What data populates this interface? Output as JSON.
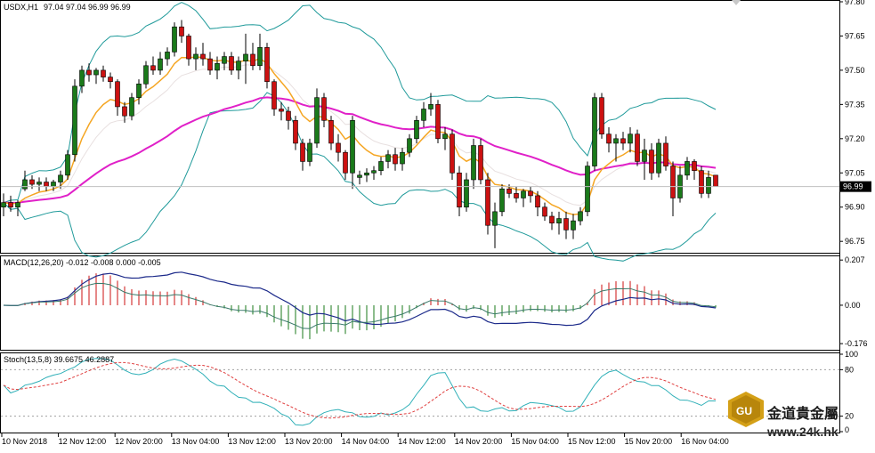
{
  "header": {
    "symbol": "USDX,H1",
    "ohlc": "97.04 97.04 96.99 96.99"
  },
  "price_panel": {
    "ticks": [
      "97.80",
      "97.65",
      "97.50",
      "97.35",
      "97.20",
      "97.05",
      "96.90",
      "96.75"
    ],
    "current_price": "96.99"
  },
  "macd_panel": {
    "label": "MACD(12,26,20) -0.012 -0.008 0.000 -0.005",
    "ticks": [
      "0.207",
      "0.00",
      "-0.176"
    ]
  },
  "stoch_panel": {
    "label": "Stoch(13,5,8) 39.6675 46.2887",
    "ticks": [
      "100",
      "80",
      "20",
      "0"
    ]
  },
  "time_axis": [
    "10 Nov 2018",
    "12 Nov 12:00",
    "12 Nov 20:00",
    "13 Nov 04:00",
    "13 Nov 12:00",
    "13 Nov 20:00",
    "14 Nov 04:00",
    "14 Nov 12:00",
    "14 Nov 20:00",
    "15 Nov 04:00",
    "15 Nov 12:00",
    "15 Nov 20:00",
    "16 Nov 04:00"
  ],
  "watermark": {
    "logo_text": "GU",
    "name": "金道貴金屬",
    "url": "www.24k.hk"
  },
  "colors": {
    "bull": "#1a7a1a",
    "bear": "#cc1111",
    "ma_fast": "#f5a623",
    "ma_slow": "#e020c8",
    "bands": "#1f9a9a",
    "macd_signal": "#1c2a8a",
    "macd_line": "#3a7a6a",
    "stoch_main": "#30b0b8",
    "stoch_signal": "#e04040"
  },
  "chart_data": {
    "type": "candlestick",
    "symbol": "USDX",
    "timeframe": "H1",
    "candles": [
      {
        "o": 96.9,
        "h": 96.96,
        "l": 96.86,
        "c": 96.92
      },
      {
        "o": 96.92,
        "h": 96.95,
        "l": 96.88,
        "c": 96.9
      },
      {
        "o": 96.9,
        "h": 96.93,
        "l": 96.86,
        "c": 96.92
      },
      {
        "o": 96.98,
        "h": 97.06,
        "l": 96.97,
        "c": 97.02
      },
      {
        "o": 97.02,
        "h": 97.04,
        "l": 96.98,
        "c": 97.0
      },
      {
        "o": 97.0,
        "h": 97.03,
        "l": 96.97,
        "c": 97.01
      },
      {
        "o": 97.01,
        "h": 97.03,
        "l": 96.97,
        "c": 96.99
      },
      {
        "o": 96.99,
        "h": 97.02,
        "l": 96.97,
        "c": 97.01
      },
      {
        "o": 97.01,
        "h": 97.06,
        "l": 96.98,
        "c": 97.04
      },
      {
        "o": 97.04,
        "h": 97.15,
        "l": 97.02,
        "c": 97.13
      },
      {
        "o": 97.13,
        "h": 97.46,
        "l": 97.1,
        "c": 97.43
      },
      {
        "o": 97.43,
        "h": 97.52,
        "l": 97.4,
        "c": 97.5
      },
      {
        "o": 97.5,
        "h": 97.53,
        "l": 97.45,
        "c": 97.48
      },
      {
        "o": 97.48,
        "h": 97.51,
        "l": 97.44,
        "c": 97.5
      },
      {
        "o": 97.5,
        "h": 97.52,
        "l": 97.45,
        "c": 97.47
      },
      {
        "o": 97.47,
        "h": 97.49,
        "l": 97.42,
        "c": 97.45
      },
      {
        "o": 97.45,
        "h": 97.46,
        "l": 97.3,
        "c": 97.34
      },
      {
        "o": 97.34,
        "h": 97.36,
        "l": 97.27,
        "c": 97.3
      },
      {
        "o": 97.3,
        "h": 97.4,
        "l": 97.28,
        "c": 97.38
      },
      {
        "o": 97.38,
        "h": 97.46,
        "l": 97.35,
        "c": 97.44
      },
      {
        "o": 97.44,
        "h": 97.54,
        "l": 97.42,
        "c": 97.52
      },
      {
        "o": 97.52,
        "h": 97.56,
        "l": 97.48,
        "c": 97.5
      },
      {
        "o": 97.5,
        "h": 97.58,
        "l": 97.48,
        "c": 97.55
      },
      {
        "o": 97.55,
        "h": 97.6,
        "l": 97.52,
        "c": 97.58
      },
      {
        "o": 97.58,
        "h": 97.71,
        "l": 97.56,
        "c": 97.69
      },
      {
        "o": 97.69,
        "h": 97.72,
        "l": 97.62,
        "c": 97.65
      },
      {
        "o": 97.65,
        "h": 97.66,
        "l": 97.52,
        "c": 97.55
      },
      {
        "o": 97.55,
        "h": 97.6,
        "l": 97.5,
        "c": 97.57
      },
      {
        "o": 97.57,
        "h": 97.62,
        "l": 97.52,
        "c": 97.55
      },
      {
        "o": 97.55,
        "h": 97.58,
        "l": 97.48,
        "c": 97.5
      },
      {
        "o": 97.5,
        "h": 97.56,
        "l": 97.46,
        "c": 97.53
      },
      {
        "o": 97.53,
        "h": 97.58,
        "l": 97.5,
        "c": 97.56
      },
      {
        "o": 97.56,
        "h": 97.58,
        "l": 97.48,
        "c": 97.5
      },
      {
        "o": 97.5,
        "h": 97.56,
        "l": 97.46,
        "c": 97.54
      },
      {
        "o": 97.54,
        "h": 97.66,
        "l": 97.44,
        "c": 97.57
      },
      {
        "o": 97.57,
        "h": 97.62,
        "l": 97.5,
        "c": 97.52
      },
      {
        "o": 97.52,
        "h": 97.66,
        "l": 97.5,
        "c": 97.6
      },
      {
        "o": 97.6,
        "h": 97.62,
        "l": 97.42,
        "c": 97.45
      },
      {
        "o": 97.45,
        "h": 97.46,
        "l": 97.3,
        "c": 97.33
      },
      {
        "o": 97.33,
        "h": 97.36,
        "l": 97.28,
        "c": 97.32
      },
      {
        "o": 97.32,
        "h": 97.34,
        "l": 97.24,
        "c": 97.28
      },
      {
        "o": 97.28,
        "h": 97.3,
        "l": 97.15,
        "c": 97.18
      },
      {
        "o": 97.18,
        "h": 97.2,
        "l": 97.06,
        "c": 97.1
      },
      {
        "o": 97.1,
        "h": 97.2,
        "l": 97.08,
        "c": 97.18
      },
      {
        "o": 97.18,
        "h": 97.42,
        "l": 97.16,
        "c": 97.38
      },
      {
        "o": 97.38,
        "h": 97.4,
        "l": 97.25,
        "c": 97.28
      },
      {
        "o": 97.28,
        "h": 97.3,
        "l": 97.15,
        "c": 97.18
      },
      {
        "o": 97.18,
        "h": 97.22,
        "l": 97.1,
        "c": 97.14
      },
      {
        "o": 97.14,
        "h": 97.15,
        "l": 97.02,
        "c": 97.05
      },
      {
        "o": 97.05,
        "h": 97.3,
        "l": 96.98,
        "c": 97.28
      },
      {
        "o": 97.03,
        "h": 97.06,
        "l": 97.0,
        "c": 97.04
      },
      {
        "o": 97.04,
        "h": 97.07,
        "l": 97.01,
        "c": 97.05
      },
      {
        "o": 97.05,
        "h": 97.08,
        "l": 97.02,
        "c": 97.06
      },
      {
        "o": 97.06,
        "h": 97.12,
        "l": 97.04,
        "c": 97.1
      },
      {
        "o": 97.1,
        "h": 97.15,
        "l": 97.07,
        "c": 97.13
      },
      {
        "o": 97.13,
        "h": 97.16,
        "l": 97.06,
        "c": 97.09
      },
      {
        "o": 97.09,
        "h": 97.16,
        "l": 97.06,
        "c": 97.14
      },
      {
        "o": 97.14,
        "h": 97.22,
        "l": 97.12,
        "c": 97.2
      },
      {
        "o": 97.2,
        "h": 97.3,
        "l": 97.18,
        "c": 97.28
      },
      {
        "o": 97.28,
        "h": 97.36,
        "l": 97.25,
        "c": 97.33
      },
      {
        "o": 97.33,
        "h": 97.4,
        "l": 97.3,
        "c": 97.35
      },
      {
        "o": 97.35,
        "h": 97.37,
        "l": 97.18,
        "c": 97.2
      },
      {
        "o": 97.2,
        "h": 97.25,
        "l": 97.15,
        "c": 97.22
      },
      {
        "o": 97.22,
        "h": 97.24,
        "l": 97.02,
        "c": 97.05
      },
      {
        "o": 97.05,
        "h": 97.08,
        "l": 96.86,
        "c": 96.9
      },
      {
        "o": 96.9,
        "h": 97.05,
        "l": 96.88,
        "c": 97.02
      },
      {
        "o": 97.02,
        "h": 97.2,
        "l": 96.98,
        "c": 97.17
      },
      {
        "o": 97.17,
        "h": 97.2,
        "l": 97.0,
        "c": 97.02
      },
      {
        "o": 97.02,
        "h": 97.05,
        "l": 96.78,
        "c": 96.82
      },
      {
        "o": 96.82,
        "h": 96.92,
        "l": 96.72,
        "c": 96.88
      },
      {
        "o": 96.88,
        "h": 97.0,
        "l": 96.86,
        "c": 96.98
      },
      {
        "o": 96.98,
        "h": 97.0,
        "l": 96.94,
        "c": 96.96
      },
      {
        "o": 96.96,
        "h": 96.99,
        "l": 96.92,
        "c": 96.94
      },
      {
        "o": 96.94,
        "h": 96.98,
        "l": 96.9,
        "c": 96.97
      },
      {
        "o": 96.97,
        "h": 96.99,
        "l": 96.92,
        "c": 96.95
      },
      {
        "o": 96.95,
        "h": 96.97,
        "l": 96.86,
        "c": 96.9
      },
      {
        "o": 96.9,
        "h": 96.92,
        "l": 96.84,
        "c": 96.86
      },
      {
        "o": 96.86,
        "h": 96.88,
        "l": 96.8,
        "c": 96.83
      },
      {
        "o": 96.83,
        "h": 96.88,
        "l": 96.78,
        "c": 96.85
      },
      {
        "o": 96.85,
        "h": 96.88,
        "l": 96.76,
        "c": 96.8
      },
      {
        "o": 96.8,
        "h": 96.87,
        "l": 96.76,
        "c": 96.84
      },
      {
        "o": 96.84,
        "h": 96.9,
        "l": 96.82,
        "c": 96.88
      },
      {
        "o": 96.88,
        "h": 97.1,
        "l": 96.86,
        "c": 97.08
      },
      {
        "o": 97.08,
        "h": 97.4,
        "l": 97.06,
        "c": 97.38
      },
      {
        "o": 97.38,
        "h": 97.4,
        "l": 97.2,
        "c": 97.22
      },
      {
        "o": 97.22,
        "h": 97.25,
        "l": 97.14,
        "c": 97.18
      },
      {
        "o": 97.18,
        "h": 97.22,
        "l": 97.1,
        "c": 97.2
      },
      {
        "o": 97.2,
        "h": 97.23,
        "l": 97.15,
        "c": 97.18
      },
      {
        "o": 97.18,
        "h": 97.25,
        "l": 97.14,
        "c": 97.22
      },
      {
        "o": 97.22,
        "h": 97.24,
        "l": 97.08,
        "c": 97.1
      },
      {
        "o": 97.1,
        "h": 97.2,
        "l": 97.02,
        "c": 97.15
      },
      {
        "o": 97.15,
        "h": 97.18,
        "l": 97.02,
        "c": 97.05
      },
      {
        "o": 97.05,
        "h": 97.2,
        "l": 97.03,
        "c": 97.18
      },
      {
        "o": 97.18,
        "h": 97.21,
        "l": 97.06,
        "c": 97.08
      },
      {
        "o": 97.08,
        "h": 97.1,
        "l": 96.86,
        "c": 96.94
      },
      {
        "o": 96.94,
        "h": 97.08,
        "l": 96.92,
        "c": 97.04
      },
      {
        "o": 97.04,
        "h": 97.12,
        "l": 97.02,
        "c": 97.1
      },
      {
        "o": 97.1,
        "h": 97.11,
        "l": 97.02,
        "c": 97.06
      },
      {
        "o": 97.06,
        "h": 97.08,
        "l": 96.94,
        "c": 96.96
      },
      {
        "o": 96.96,
        "h": 97.06,
        "l": 96.94,
        "c": 97.03
      },
      {
        "o": 97.04,
        "h": 97.04,
        "l": 96.99,
        "c": 96.99
      }
    ],
    "price_axis": {
      "min": 96.7,
      "max": 97.8
    },
    "macd_axis": {
      "min": -0.2,
      "max": 0.22
    },
    "stoch_axis": {
      "min": 0,
      "max": 100
    },
    "stoch_levels": [
      80,
      20
    ]
  }
}
